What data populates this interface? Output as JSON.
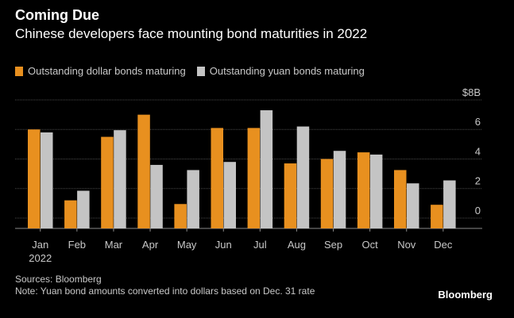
{
  "header": {
    "title": "Coming Due",
    "subtitle": "Chinese developers face mounting bond maturities in 2022"
  },
  "footer": {
    "source": "Sources: Bloomberg",
    "note": "Note: Yuan bond amounts converted into dollars based on Dec. 31 rate",
    "brand": "Bloomberg"
  },
  "colors": {
    "dollar": "#e8901f",
    "yuan": "#c4c4c4",
    "grid": "#4a4a4a",
    "axis_text": "#c8c8c8",
    "background": "#000000"
  },
  "chart_data": {
    "type": "bar",
    "categories": [
      "Jan",
      "Feb",
      "Mar",
      "Apr",
      "May",
      "Jun",
      "Jul",
      "Aug",
      "Sep",
      "Oct",
      "Nov",
      "Dec"
    ],
    "category_sublabels": [
      "2022",
      "",
      "",
      "",
      "",
      "",
      "",
      "",
      "",
      "",
      "",
      ""
    ],
    "series": [
      {
        "name": "Outstanding dollar bonds maturing",
        "values": [
          6.0,
          1.2,
          5.5,
          7.0,
          0.95,
          6.1,
          6.1,
          3.7,
          4.0,
          4.45,
          3.25,
          0.9
        ]
      },
      {
        "name": "Outstanding yuan bonds maturing",
        "values": [
          5.8,
          1.85,
          5.95,
          3.6,
          3.25,
          3.8,
          7.3,
          6.2,
          4.55,
          4.3,
          2.35,
          2.55
        ]
      }
    ],
    "y_ticks": [
      0,
      2,
      4,
      6,
      8
    ],
    "y_tick_labels": [
      "0",
      "2",
      "4",
      "6",
      "$8B"
    ],
    "ylim": [
      -0.7,
      8
    ],
    "grid": true,
    "legend_position": "top-left"
  }
}
